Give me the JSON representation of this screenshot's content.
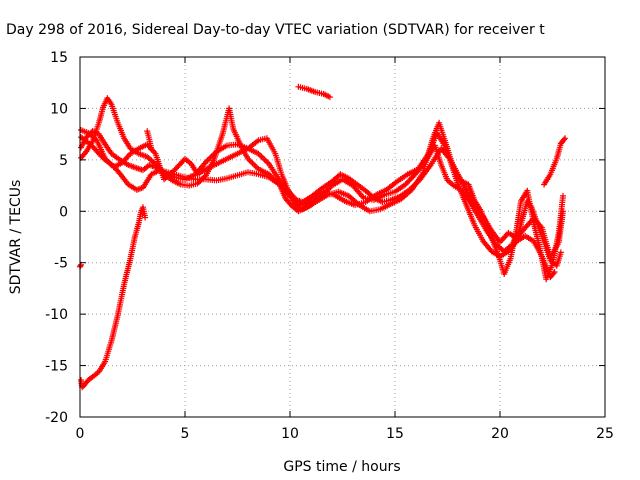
{
  "chart_data": {
    "type": "scatter",
    "title": "Day 298 of 2016, Sidereal Day-to-day VTEC variation (SDTVAR) for receiver t",
    "xlabel": "GPS time / hours",
    "ylabel": "SDTVAR / TECUs",
    "xlim": [
      0,
      25
    ],
    "ylim": [
      -20,
      15
    ],
    "xticks": [
      0,
      5,
      10,
      15,
      20,
      25
    ],
    "yticks": [
      -20,
      -15,
      -10,
      -5,
      0,
      5,
      10,
      15
    ],
    "grid": true,
    "marker": "plus",
    "color": "#ff0000",
    "series": [
      {
        "points": [
          [
            0.05,
            6.2
          ],
          [
            0.3,
            7.2
          ],
          [
            0.6,
            7.8
          ],
          [
            0.9,
            7.5
          ],
          [
            1.2,
            6.5
          ],
          [
            1.5,
            5.6
          ],
          [
            1.9,
            5.0
          ],
          [
            2.3,
            4.5
          ],
          [
            2.7,
            4.2
          ],
          [
            3.0,
            4.0
          ],
          [
            3.3,
            4.5
          ],
          [
            3.6,
            4.3
          ],
          [
            4.0,
            3.9
          ],
          [
            4.5,
            3.6
          ],
          [
            5.0,
            3.3
          ],
          [
            5.5,
            3.1
          ],
          [
            6.0,
            3.1
          ],
          [
            6.5,
            3.0
          ],
          [
            7.0,
            3.2
          ],
          [
            7.5,
            3.5
          ],
          [
            8.0,
            3.8
          ],
          [
            8.5,
            3.6
          ],
          [
            9.0,
            3.3
          ],
          [
            9.5,
            2.6
          ],
          [
            10.0,
            1.5
          ],
          [
            10.3,
            0.6
          ],
          [
            10.6,
            0.2
          ],
          [
            11.0,
            0.6
          ],
          [
            11.5,
            1.5
          ],
          [
            12.0,
            2.5
          ],
          [
            12.5,
            3.1
          ],
          [
            13.0,
            2.5
          ],
          [
            13.5,
            1.3
          ],
          [
            14.0,
            1.1
          ],
          [
            14.5,
            1.6
          ],
          [
            15.0,
            1.9
          ],
          [
            15.5,
            2.6
          ],
          [
            16.0,
            3.7
          ],
          [
            16.5,
            5.0
          ],
          [
            16.9,
            6.4
          ],
          [
            17.2,
            4.5
          ],
          [
            17.5,
            3.0
          ],
          [
            17.8,
            2.5
          ],
          [
            18.2,
            2.0
          ],
          [
            18.6,
            0.8
          ],
          [
            19.0,
            -0.6
          ],
          [
            19.4,
            -2.0
          ],
          [
            19.8,
            -3.2
          ],
          [
            20.2,
            -3.9
          ],
          [
            20.6,
            -3.2
          ],
          [
            20.9,
            -2.0
          ],
          [
            21.1,
            -0.5
          ],
          [
            21.3,
            1.0
          ],
          [
            21.5,
            0.4
          ],
          [
            21.8,
            -1.3
          ],
          [
            22.1,
            -3.0
          ],
          [
            22.4,
            -4.8
          ],
          [
            22.7,
            -5.3
          ],
          [
            22.9,
            -4.0
          ]
        ]
      },
      {
        "points": [
          [
            0.05,
            7.2
          ],
          [
            0.3,
            6.8
          ],
          [
            0.6,
            6.3
          ],
          [
            0.9,
            5.6
          ],
          [
            1.2,
            5.0
          ],
          [
            1.6,
            4.4
          ],
          [
            2.0,
            3.4
          ],
          [
            2.3,
            2.6
          ],
          [
            2.7,
            2.1
          ],
          [
            3.0,
            2.3
          ],
          [
            3.4,
            3.6
          ],
          [
            3.8,
            4.0
          ],
          [
            4.1,
            3.6
          ],
          [
            4.5,
            3.3
          ],
          [
            5.0,
            3.1
          ],
          [
            5.5,
            3.6
          ],
          [
            6.0,
            4.8
          ],
          [
            6.5,
            5.8
          ],
          [
            7.0,
            6.4
          ],
          [
            7.5,
            6.5
          ],
          [
            8.0,
            6.1
          ],
          [
            8.5,
            5.6
          ],
          [
            9.0,
            4.6
          ],
          [
            9.5,
            3.0
          ],
          [
            10.0,
            1.8
          ],
          [
            10.3,
            1.1
          ],
          [
            10.6,
            0.9
          ],
          [
            11.0,
            1.4
          ],
          [
            11.5,
            2.2
          ],
          [
            12.0,
            2.9
          ],
          [
            12.4,
            3.6
          ],
          [
            12.8,
            3.2
          ],
          [
            13.2,
            2.6
          ],
          [
            13.6,
            2.0
          ],
          [
            14.0,
            1.3
          ],
          [
            14.4,
            0.9
          ],
          [
            14.8,
            1.1
          ],
          [
            15.2,
            1.4
          ],
          [
            15.7,
            2.1
          ],
          [
            16.2,
            3.1
          ],
          [
            16.7,
            4.5
          ],
          [
            17.2,
            6.1
          ],
          [
            17.6,
            5.1
          ],
          [
            18.0,
            3.6
          ],
          [
            18.4,
            2.0
          ],
          [
            18.8,
            0.6
          ],
          [
            19.2,
            -0.5
          ],
          [
            19.6,
            -1.9
          ],
          [
            20.0,
            -3.0
          ],
          [
            20.4,
            -2.1
          ],
          [
            20.8,
            -2.6
          ],
          [
            21.2,
            -1.6
          ],
          [
            21.6,
            -0.7
          ],
          [
            22.0,
            -1.6
          ],
          [
            22.4,
            -4.5
          ],
          [
            22.8,
            -3.0
          ],
          [
            23.0,
            0.0
          ]
        ]
      },
      {
        "points": [
          [
            0.05,
            5.2
          ],
          [
            0.3,
            5.8
          ],
          [
            0.6,
            6.8
          ],
          [
            0.9,
            8.6
          ],
          [
            1.1,
            10.1
          ],
          [
            1.3,
            11.0
          ],
          [
            1.5,
            10.4
          ],
          [
            1.8,
            8.6
          ],
          [
            2.1,
            7.1
          ],
          [
            2.4,
            6.1
          ],
          [
            2.8,
            5.6
          ],
          [
            3.2,
            5.3
          ],
          [
            3.6,
            4.6
          ],
          [
            4.0,
            3.6
          ],
          [
            4.4,
            3.0
          ],
          [
            4.8,
            2.6
          ],
          [
            5.2,
            2.5
          ],
          [
            5.6,
            2.7
          ],
          [
            6.0,
            3.5
          ],
          [
            6.4,
            5.1
          ],
          [
            6.8,
            7.6
          ],
          [
            7.1,
            10.0
          ],
          [
            7.3,
            8.0
          ],
          [
            7.7,
            6.2
          ],
          [
            8.0,
            5.1
          ],
          [
            8.5,
            4.1
          ],
          [
            9.0,
            3.6
          ],
          [
            9.5,
            2.6
          ],
          [
            9.8,
            1.2
          ],
          [
            10.1,
            0.5
          ],
          [
            10.4,
            0.0
          ],
          [
            10.8,
            0.4
          ],
          [
            11.3,
            1.0
          ],
          [
            11.8,
            1.6
          ],
          [
            12.3,
            1.9
          ],
          [
            12.8,
            1.5
          ],
          [
            13.3,
            0.6
          ],
          [
            13.8,
            0.0
          ],
          [
            14.3,
            0.2
          ],
          [
            14.8,
            0.7
          ],
          [
            15.3,
            1.2
          ],
          [
            15.8,
            2.1
          ],
          [
            16.3,
            3.6
          ],
          [
            16.8,
            7.1
          ],
          [
            17.1,
            8.6
          ],
          [
            17.5,
            6.1
          ],
          [
            17.8,
            4.1
          ],
          [
            18.1,
            3.0
          ],
          [
            18.5,
            2.6
          ],
          [
            18.8,
            1.0
          ],
          [
            19.1,
            0.0
          ],
          [
            19.5,
            -2.1
          ],
          [
            19.9,
            -4.1
          ],
          [
            20.2,
            -6.1
          ],
          [
            20.5,
            -4.6
          ],
          [
            20.8,
            -1.6
          ],
          [
            21.0,
            1.0
          ],
          [
            21.3,
            2.0
          ],
          [
            21.6,
            -1.1
          ],
          [
            21.9,
            -3.6
          ],
          [
            22.2,
            -6.6
          ],
          [
            22.5,
            -5.1
          ],
          [
            22.8,
            -2.1
          ],
          [
            23.0,
            1.5
          ]
        ]
      },
      {
        "points": [
          [
            0.05,
            7.9
          ],
          [
            0.4,
            7.6
          ],
          [
            0.8,
            6.9
          ],
          [
            1.2,
            5.1
          ],
          [
            1.6,
            4.3
          ],
          [
            2.0,
            4.7
          ],
          [
            2.4,
            5.6
          ],
          [
            2.8,
            6.1
          ],
          [
            3.2,
            6.5
          ],
          [
            3.6,
            5.6
          ],
          [
            4.0,
            3.1
          ],
          [
            4.5,
            4.0
          ],
          [
            5.0,
            5.1
          ],
          [
            5.3,
            4.6
          ],
          [
            5.6,
            3.6
          ],
          [
            6.0,
            4.1
          ],
          [
            6.5,
            4.6
          ],
          [
            7.0,
            5.1
          ],
          [
            7.5,
            5.6
          ],
          [
            8.0,
            6.1
          ],
          [
            8.5,
            6.9
          ],
          [
            8.9,
            7.1
          ],
          [
            9.3,
            5.6
          ],
          [
            9.6,
            3.6
          ],
          [
            9.9,
            2.1
          ],
          [
            10.2,
            1.1
          ],
          [
            10.6,
            0.6
          ],
          [
            11.1,
            1.1
          ],
          [
            11.6,
            1.9
          ],
          [
            12.1,
            1.6
          ],
          [
            12.6,
            1.0
          ],
          [
            13.1,
            0.6
          ],
          [
            13.6,
            0.9
          ],
          [
            14.1,
            1.6
          ],
          [
            14.6,
            2.1
          ],
          [
            15.1,
            2.9
          ],
          [
            15.6,
            3.6
          ],
          [
            16.1,
            4.1
          ],
          [
            16.6,
            5.6
          ],
          [
            17.0,
            7.6
          ],
          [
            17.3,
            6.6
          ],
          [
            17.6,
            5.1
          ],
          [
            18.0,
            2.6
          ],
          [
            18.4,
            0.6
          ],
          [
            18.8,
            -1.4
          ],
          [
            19.2,
            -2.9
          ],
          [
            19.6,
            -3.9
          ],
          [
            20.0,
            -4.4
          ],
          [
            20.4,
            -3.9
          ],
          [
            20.8,
            -2.9
          ],
          [
            21.2,
            -2.4
          ],
          [
            21.6,
            -2.9
          ],
          [
            22.0,
            -4.4
          ],
          [
            22.4,
            -6.4
          ],
          [
            22.6,
            -5.9
          ]
        ]
      },
      {
        "points": [
          [
            0.05,
            -16.4
          ],
          [
            0.1,
            -17.1
          ],
          [
            0.2,
            -16.9
          ],
          [
            0.4,
            -16.4
          ],
          [
            0.6,
            -16.1
          ],
          [
            0.9,
            -15.6
          ],
          [
            1.2,
            -14.6
          ],
          [
            1.5,
            -12.6
          ],
          [
            1.8,
            -10.1
          ],
          [
            2.1,
            -7.1
          ],
          [
            2.4,
            -4.6
          ],
          [
            2.6,
            -2.6
          ],
          [
            2.8,
            -1.1
          ],
          [
            2.9,
            -0.1
          ],
          [
            3.0,
            0.4
          ],
          [
            3.1,
            -0.6
          ]
        ]
      },
      {
        "points": [
          [
            0.0,
            -5.4
          ],
          [
            0.05,
            -5.2
          ]
        ]
      },
      {
        "points": [
          [
            3.2,
            7.8
          ],
          [
            3.3,
            7.0
          ],
          [
            3.4,
            6.0
          ]
        ]
      },
      {
        "points": [
          [
            10.4,
            12.1
          ],
          [
            10.8,
            11.9
          ],
          [
            11.2,
            11.6
          ],
          [
            11.6,
            11.4
          ],
          [
            11.9,
            11.1
          ]
        ]
      },
      {
        "points": [
          [
            22.1,
            2.6
          ],
          [
            22.4,
            3.6
          ],
          [
            22.7,
            5.1
          ],
          [
            22.9,
            6.6
          ],
          [
            23.1,
            7.1
          ]
        ]
      }
    ]
  }
}
